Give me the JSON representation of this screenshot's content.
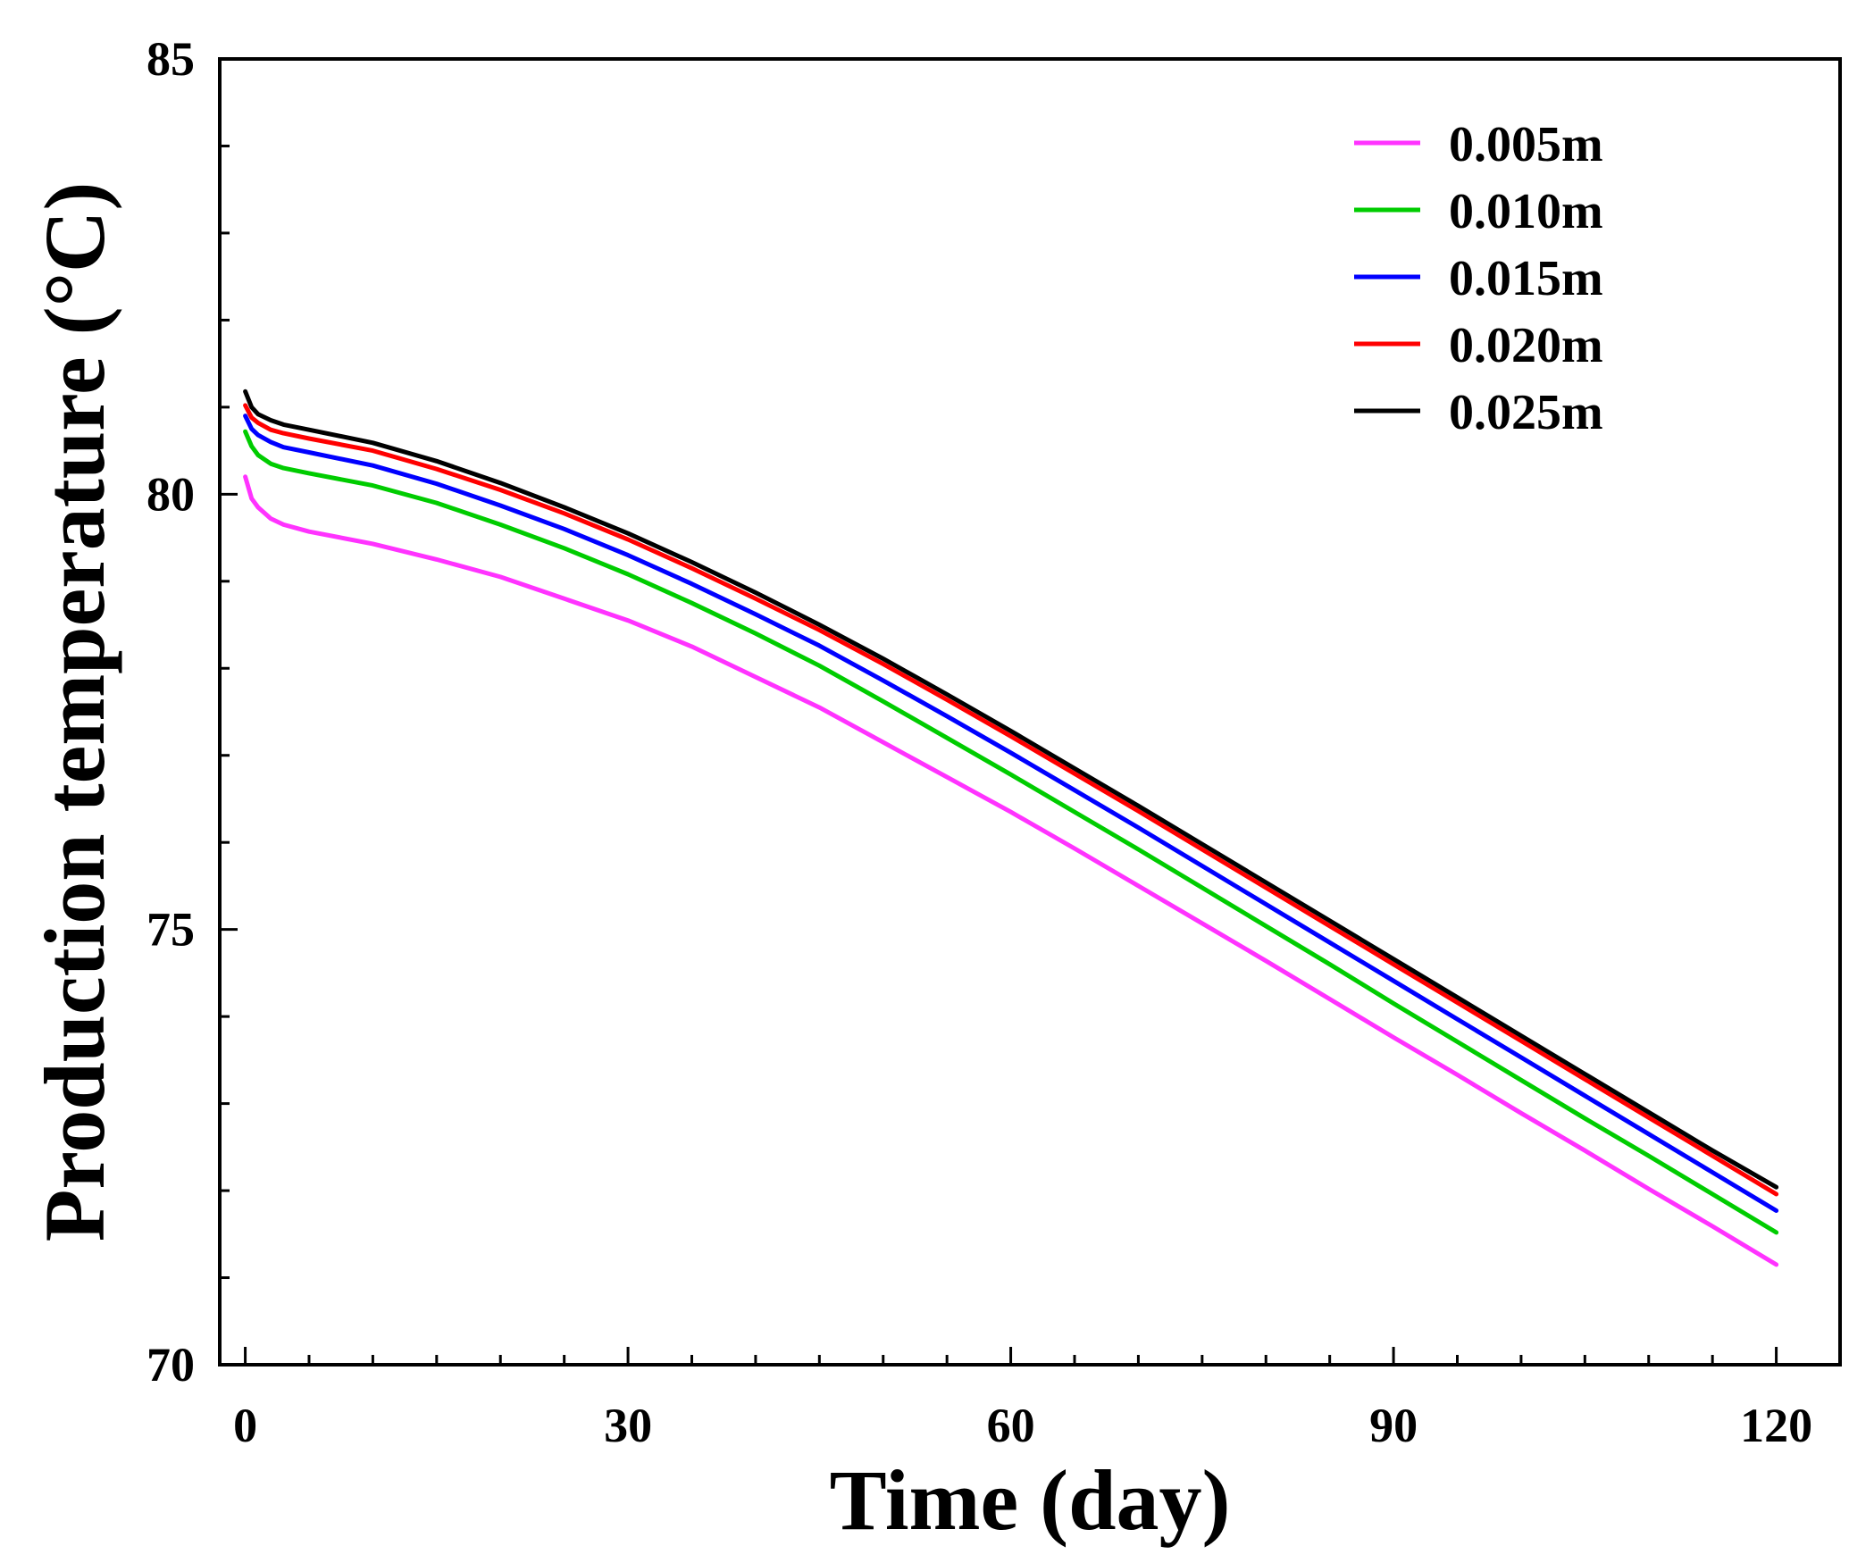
{
  "chart_data": {
    "type": "line",
    "title": "",
    "xlabel": "Time (day)",
    "ylabel": "Production temperature (°C)",
    "xlim": [
      -2,
      125
    ],
    "ylim": [
      70,
      85
    ],
    "xticks": [
      0,
      30,
      60,
      90,
      120
    ],
    "yticks": [
      70,
      75,
      80,
      85
    ],
    "xtick_labels": [
      "0",
      "30",
      "60",
      "90",
      "120"
    ],
    "ytick_labels": [
      "70",
      "75",
      "80",
      "85"
    ],
    "grid": false,
    "legend_position": "top-right",
    "series": [
      {
        "name": "0.005m",
        "color": "#ff33ff",
        "x": [
          0,
          0.5,
          1,
          2,
          3,
          5,
          10,
          15,
          20,
          25,
          30,
          35,
          40,
          45,
          50,
          55,
          60,
          65,
          70,
          75,
          80,
          85,
          90,
          95,
          100,
          105,
          110,
          115,
          120
        ],
        "y": [
          80.2,
          79.95,
          79.85,
          79.72,
          79.65,
          79.57,
          79.43,
          79.25,
          79.05,
          78.8,
          78.55,
          78.25,
          77.9,
          77.55,
          77.15,
          76.75,
          76.35,
          75.93,
          75.5,
          75.07,
          74.64,
          74.2,
          73.76,
          73.33,
          72.89,
          72.46,
          72.02,
          71.59,
          71.15
        ]
      },
      {
        "name": "0.010m",
        "color": "#00cc00",
        "x": [
          0,
          0.5,
          1,
          2,
          3,
          5,
          10,
          15,
          20,
          25,
          30,
          35,
          40,
          45,
          50,
          55,
          60,
          65,
          70,
          75,
          80,
          85,
          90,
          95,
          100,
          105,
          110,
          115,
          120
        ],
        "y": [
          80.72,
          80.55,
          80.45,
          80.35,
          80.3,
          80.24,
          80.1,
          79.9,
          79.65,
          79.38,
          79.08,
          78.75,
          78.4,
          78.03,
          77.62,
          77.2,
          76.78,
          76.35,
          75.92,
          75.48,
          75.04,
          74.6,
          74.15,
          73.71,
          73.27,
          72.83,
          72.4,
          71.96,
          71.52
        ]
      },
      {
        "name": "0.015m",
        "color": "#0000ff",
        "x": [
          0,
          0.5,
          1,
          2,
          3,
          5,
          10,
          15,
          20,
          25,
          30,
          35,
          40,
          45,
          50,
          55,
          60,
          65,
          70,
          75,
          80,
          85,
          90,
          95,
          100,
          105,
          110,
          115,
          120
        ],
        "y": [
          80.9,
          80.75,
          80.68,
          80.6,
          80.54,
          80.48,
          80.33,
          80.12,
          79.87,
          79.6,
          79.3,
          78.97,
          78.62,
          78.26,
          77.86,
          77.45,
          77.03,
          76.6,
          76.17,
          75.73,
          75.29,
          74.85,
          74.41,
          73.97,
          73.53,
          73.09,
          72.65,
          72.21,
          71.77
        ]
      },
      {
        "name": "0.020m",
        "color": "#ff0000",
        "x": [
          0,
          0.5,
          1,
          2,
          3,
          5,
          10,
          15,
          20,
          25,
          30,
          35,
          40,
          45,
          50,
          55,
          60,
          65,
          70,
          75,
          80,
          85,
          90,
          95,
          100,
          105,
          110,
          115,
          120
        ],
        "y": [
          81.02,
          80.88,
          80.82,
          80.74,
          80.7,
          80.64,
          80.5,
          80.29,
          80.05,
          79.78,
          79.48,
          79.15,
          78.8,
          78.44,
          78.05,
          77.64,
          77.22,
          76.79,
          76.36,
          75.92,
          75.48,
          75.04,
          74.6,
          74.16,
          73.72,
          73.28,
          72.84,
          72.4,
          71.96
        ]
      },
      {
        "name": "0.025m",
        "color": "#000000",
        "x": [
          0,
          0.5,
          1,
          2,
          3,
          5,
          10,
          15,
          20,
          25,
          30,
          35,
          40,
          45,
          50,
          55,
          60,
          65,
          70,
          75,
          80,
          85,
          90,
          95,
          100,
          105,
          110,
          115,
          120
        ],
        "y": [
          81.18,
          81.0,
          80.92,
          80.85,
          80.8,
          80.74,
          80.59,
          80.38,
          80.13,
          79.85,
          79.55,
          79.22,
          78.87,
          78.5,
          78.11,
          77.7,
          77.28,
          76.85,
          76.42,
          75.98,
          75.54,
          75.1,
          74.66,
          74.22,
          73.78,
          73.34,
          72.9,
          72.46,
          72.04
        ]
      }
    ]
  }
}
